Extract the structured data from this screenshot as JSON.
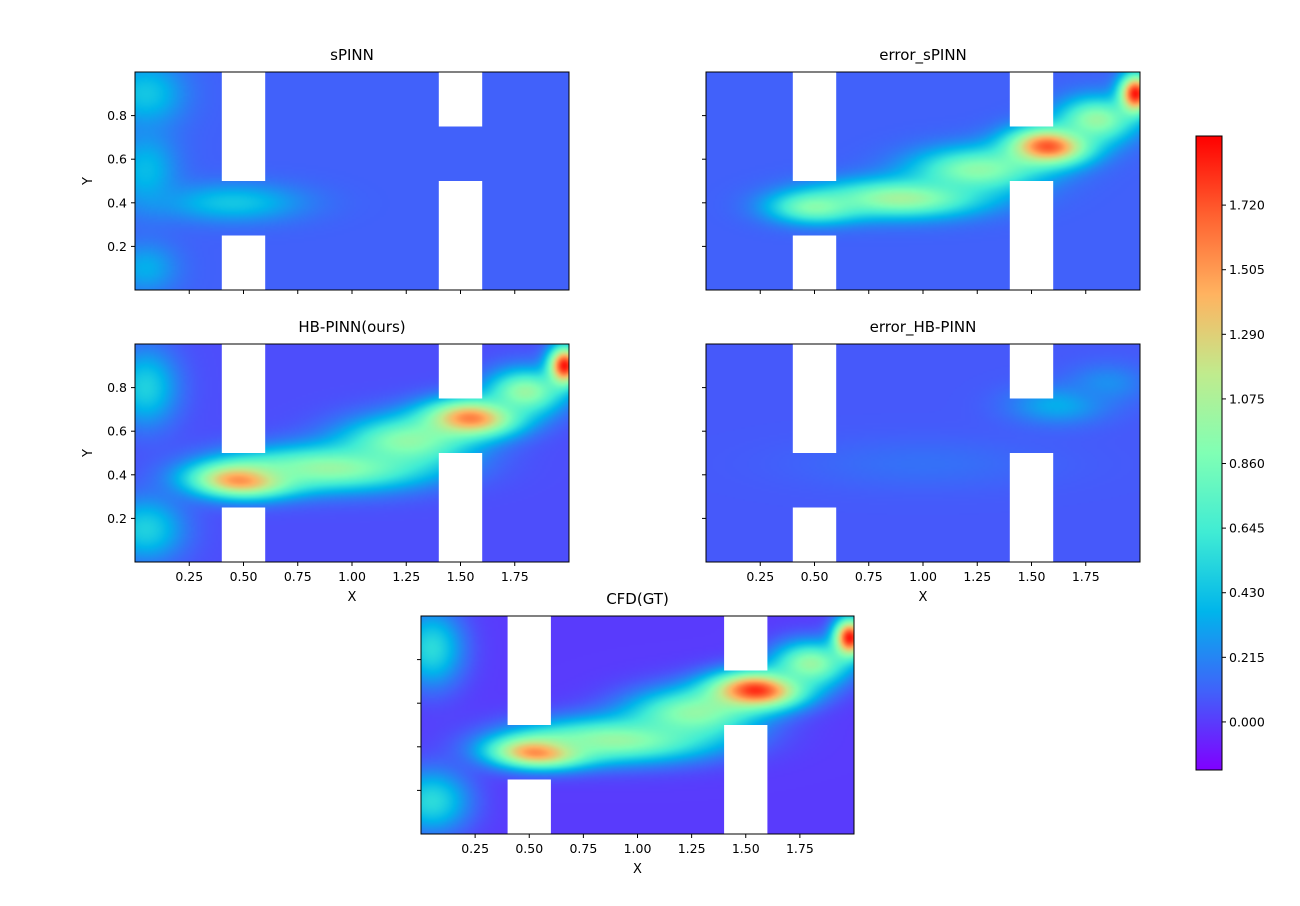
{
  "chart_data": [
    {
      "type": "heatmap",
      "title": "sPINN",
      "xlabel": "",
      "ylabel": "Y",
      "xlim": [
        0,
        2
      ],
      "ylim": [
        0,
        1
      ],
      "xticks": [],
      "yticks": [
        "0.2",
        "0.4",
        "0.6",
        "0.8"
      ],
      "obstacles": [
        {
          "x": [
            0.4,
            0.6
          ],
          "y": [
            0.5,
            1.0
          ]
        },
        {
          "x": [
            0.4,
            0.6
          ],
          "y": [
            0.0,
            0.25
          ]
        },
        {
          "x": [
            1.4,
            1.6
          ],
          "y": [
            0.75,
            1.0
          ]
        },
        {
          "x": [
            1.4,
            1.6
          ],
          "y": [
            0.0,
            0.5
          ]
        }
      ],
      "background_value": 0.1,
      "hotspots": [
        {
          "x": 0.45,
          "y": 0.4,
          "sx": 0.22,
          "sy": 0.06,
          "value": 0.45
        },
        {
          "x": 0.05,
          "y": 0.9,
          "sx": 0.12,
          "sy": 0.1,
          "value": 0.45
        },
        {
          "x": 0.05,
          "y": 0.55,
          "sx": 0.1,
          "sy": 0.12,
          "value": 0.4
        },
        {
          "x": 0.05,
          "y": 0.1,
          "sx": 0.1,
          "sy": 0.08,
          "value": 0.35
        }
      ]
    },
    {
      "type": "heatmap",
      "title": "error_sPINN",
      "xlabel": "",
      "ylabel": "",
      "xlim": [
        0,
        2
      ],
      "ylim": [
        0,
        1
      ],
      "xticks": [],
      "yticks": [],
      "obstacles": [
        {
          "x": [
            0.4,
            0.6
          ],
          "y": [
            0.5,
            1.0
          ]
        },
        {
          "x": [
            0.4,
            0.6
          ],
          "y": [
            0.0,
            0.25
          ]
        },
        {
          "x": [
            1.4,
            1.6
          ],
          "y": [
            0.75,
            1.0
          ]
        },
        {
          "x": [
            1.4,
            1.6
          ],
          "y": [
            0.0,
            0.5
          ]
        }
      ],
      "background_value": 0.1,
      "hotspots": [
        {
          "x": 0.5,
          "y": 0.38,
          "sx": 0.14,
          "sy": 0.05,
          "value": 0.9
        },
        {
          "x": 0.9,
          "y": 0.42,
          "sx": 0.25,
          "sy": 0.06,
          "value": 1.05
        },
        {
          "x": 1.25,
          "y": 0.55,
          "sx": 0.2,
          "sy": 0.07,
          "value": 0.95
        },
        {
          "x": 1.58,
          "y": 0.66,
          "sx": 0.13,
          "sy": 0.06,
          "value": 1.75
        },
        {
          "x": 1.8,
          "y": 0.78,
          "sx": 0.12,
          "sy": 0.07,
          "value": 1.0
        },
        {
          "x": 1.98,
          "y": 0.9,
          "sx": 0.05,
          "sy": 0.06,
          "value": 1.9
        }
      ]
    },
    {
      "type": "heatmap",
      "title": "HB-PINN(ours)",
      "xlabel": "X",
      "ylabel": "Y",
      "xlim": [
        0,
        2
      ],
      "ylim": [
        0,
        1
      ],
      "xticks": [
        "0.25",
        "0.50",
        "0.75",
        "1.00",
        "1.25",
        "1.50",
        "1.75"
      ],
      "yticks": [
        "0.2",
        "0.4",
        "0.6",
        "0.8"
      ],
      "obstacles": [
        {
          "x": [
            0.4,
            0.6
          ],
          "y": [
            0.5,
            1.0
          ]
        },
        {
          "x": [
            0.4,
            0.6
          ],
          "y": [
            0.0,
            0.25
          ]
        },
        {
          "x": [
            1.4,
            1.6
          ],
          "y": [
            0.75,
            1.0
          ]
        },
        {
          "x": [
            1.4,
            1.6
          ],
          "y": [
            0.0,
            0.5
          ]
        }
      ],
      "background_value": 0.05,
      "hotspots": [
        {
          "x": 0.5,
          "y": 0.38,
          "sx": 0.16,
          "sy": 0.055,
          "value": 1.75
        },
        {
          "x": 0.9,
          "y": 0.43,
          "sx": 0.3,
          "sy": 0.07,
          "value": 1.0
        },
        {
          "x": 1.25,
          "y": 0.55,
          "sx": 0.2,
          "sy": 0.08,
          "value": 0.95
        },
        {
          "x": 1.55,
          "y": 0.66,
          "sx": 0.15,
          "sy": 0.06,
          "value": 1.6
        },
        {
          "x": 1.8,
          "y": 0.78,
          "sx": 0.12,
          "sy": 0.07,
          "value": 1.0
        },
        {
          "x": 1.98,
          "y": 0.9,
          "sx": 0.05,
          "sy": 0.06,
          "value": 1.9
        },
        {
          "x": 0.05,
          "y": 0.8,
          "sx": 0.1,
          "sy": 0.12,
          "value": 0.5
        },
        {
          "x": 0.05,
          "y": 0.15,
          "sx": 0.12,
          "sy": 0.1,
          "value": 0.5
        }
      ]
    },
    {
      "type": "heatmap",
      "title": "error_HB-PINN",
      "xlabel": "X",
      "ylabel": "",
      "xlim": [
        0,
        2
      ],
      "ylim": [
        0,
        1
      ],
      "xticks": [
        "0.25",
        "0.50",
        "0.75",
        "1.00",
        "1.25",
        "1.50",
        "1.75"
      ],
      "yticks": [],
      "obstacles": [
        {
          "x": [
            0.4,
            0.6
          ],
          "y": [
            0.5,
            1.0
          ]
        },
        {
          "x": [
            0.4,
            0.6
          ],
          "y": [
            0.0,
            0.25
          ]
        },
        {
          "x": [
            1.4,
            1.6
          ],
          "y": [
            0.75,
            1.0
          ]
        },
        {
          "x": [
            1.4,
            1.6
          ],
          "y": [
            0.0,
            0.5
          ]
        }
      ],
      "background_value": 0.08,
      "hotspots": [
        {
          "x": 1.62,
          "y": 0.72,
          "sx": 0.15,
          "sy": 0.06,
          "value": 0.35
        },
        {
          "x": 1.85,
          "y": 0.82,
          "sx": 0.12,
          "sy": 0.06,
          "value": 0.25
        },
        {
          "x": 1.0,
          "y": 0.45,
          "sx": 0.4,
          "sy": 0.08,
          "value": 0.15
        }
      ]
    },
    {
      "type": "heatmap",
      "title": "CFD(GT)",
      "xlabel": "X",
      "ylabel": "",
      "xlim": [
        0,
        2
      ],
      "ylim": [
        0,
        1
      ],
      "xticks": [
        "0.25",
        "0.50",
        "0.75",
        "1.00",
        "1.25",
        "1.50",
        "1.75"
      ],
      "yticks": [],
      "obstacles": [
        {
          "x": [
            0.4,
            0.6
          ],
          "y": [
            0.5,
            1.0
          ]
        },
        {
          "x": [
            0.4,
            0.6
          ],
          "y": [
            0.0,
            0.25
          ]
        },
        {
          "x": [
            1.4,
            1.6
          ],
          "y": [
            0.75,
            1.0
          ]
        },
        {
          "x": [
            1.4,
            1.6
          ],
          "y": [
            0.0,
            0.5
          ]
        }
      ],
      "background_value": 0.0,
      "hotspots": [
        {
          "x": 0.55,
          "y": 0.38,
          "sx": 0.15,
          "sy": 0.05,
          "value": 1.85
        },
        {
          "x": 0.9,
          "y": 0.43,
          "sx": 0.3,
          "sy": 0.07,
          "value": 1.0
        },
        {
          "x": 1.25,
          "y": 0.55,
          "sx": 0.2,
          "sy": 0.08,
          "value": 0.95
        },
        {
          "x": 1.55,
          "y": 0.66,
          "sx": 0.15,
          "sy": 0.06,
          "value": 1.85
        },
        {
          "x": 1.8,
          "y": 0.78,
          "sx": 0.12,
          "sy": 0.07,
          "value": 1.0
        },
        {
          "x": 1.98,
          "y": 0.9,
          "sx": 0.05,
          "sy": 0.06,
          "value": 1.9
        },
        {
          "x": 0.05,
          "y": 0.85,
          "sx": 0.1,
          "sy": 0.12,
          "value": 0.55
        },
        {
          "x": 0.05,
          "y": 0.15,
          "sx": 0.12,
          "sy": 0.1,
          "value": 0.55
        }
      ]
    }
  ],
  "colorbar": {
    "colormap": "rainbow",
    "range": [
      -0.16,
      1.95
    ],
    "ticks": [
      "0.000",
      "0.215",
      "0.430",
      "0.645",
      "0.860",
      "1.075",
      "1.290",
      "1.505",
      "1.720"
    ]
  },
  "colors": {
    "obstacle": "#ffffff",
    "axis": "#000000"
  }
}
